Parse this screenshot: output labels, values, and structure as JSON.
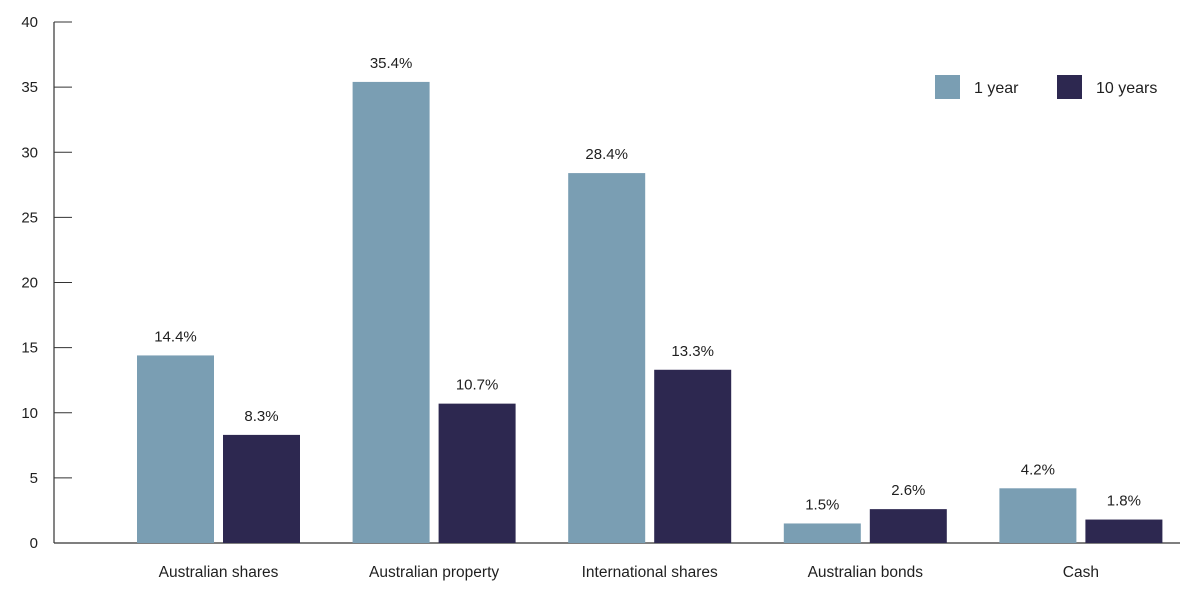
{
  "chart_data": {
    "type": "bar",
    "categories": [
      "Australian shares",
      "Australian property",
      "International shares",
      "Australian bonds",
      "Cash"
    ],
    "series": [
      {
        "name": "1 year",
        "color": "#7a9eb3",
        "values": [
          14.4,
          35.4,
          28.4,
          1.5,
          4.2
        ],
        "labels": [
          "14.4%",
          "35.4%",
          "28.4%",
          "1.5%",
          "4.2%"
        ]
      },
      {
        "name": "10 years",
        "color": "#2d2850",
        "values": [
          8.3,
          10.7,
          13.3,
          2.6,
          1.8
        ],
        "labels": [
          "8.3%",
          "10.7%",
          "13.3%",
          "2.6%",
          "1.8%"
        ]
      }
    ],
    "yticks": [
      "0",
      "5",
      "10",
      "15",
      "20",
      "25",
      "30",
      "35",
      "40"
    ],
    "ylim": [
      0,
      40
    ],
    "title": "",
    "xlabel": "",
    "ylabel": "",
    "grid": false,
    "legend_position": "top-right"
  },
  "colors": {
    "axis": "#333333",
    "text": "#1f1f1f"
  }
}
